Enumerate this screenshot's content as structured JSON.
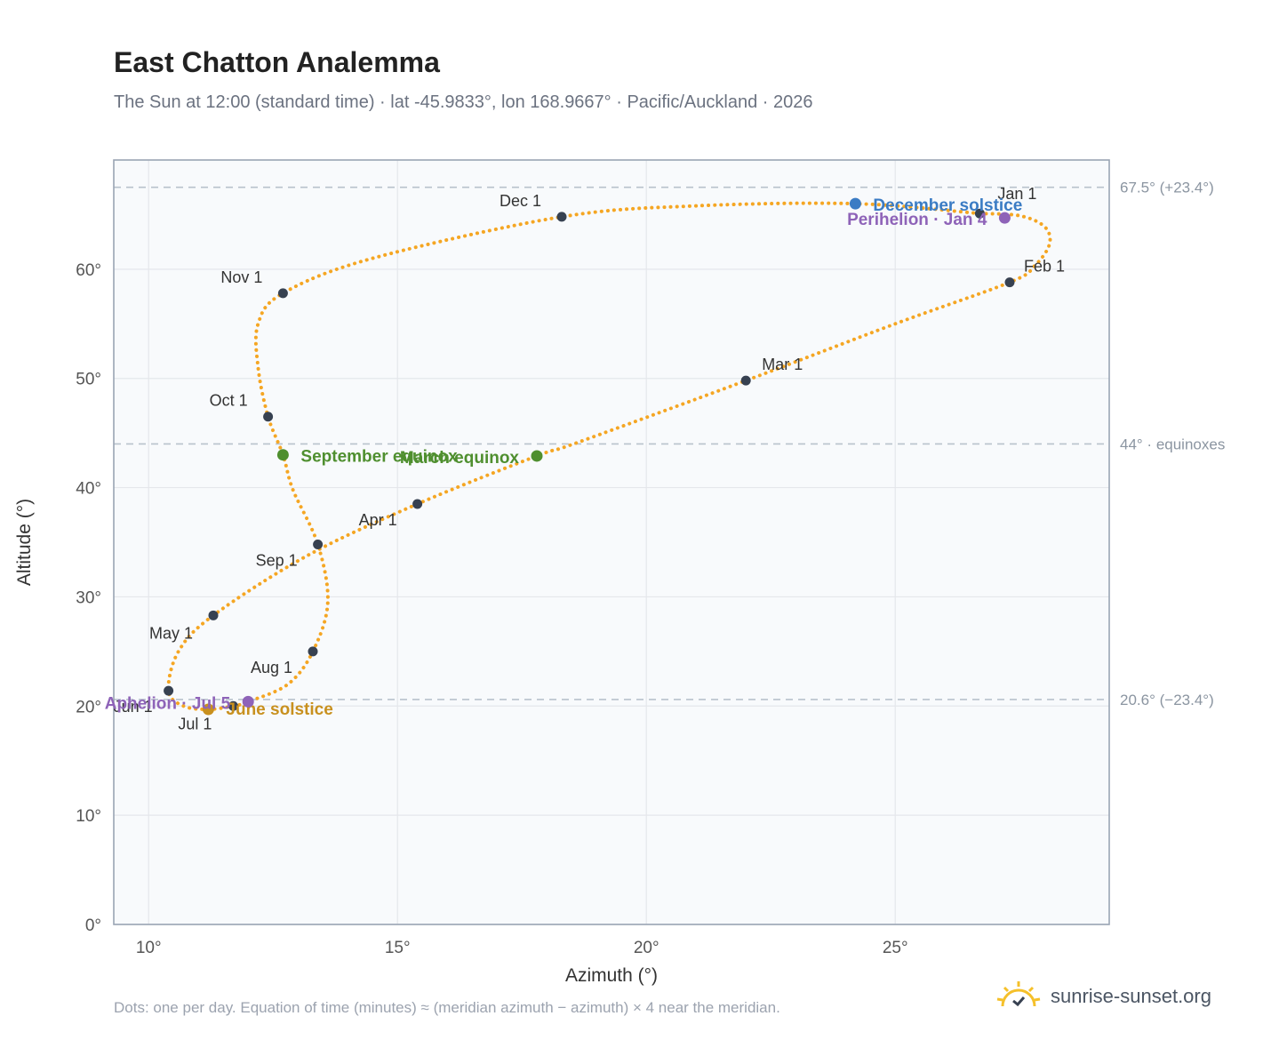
{
  "header": {
    "title": "East Chatton Analemma",
    "subtitle": "The Sun at 12:00 (standard time) · lat -45.9833°, lon 168.9667° · Pacific/Auckland · 2026"
  },
  "footer": {
    "note": "Dots: one per day. Equation of time (minutes) ≈ (meridian azimuth − azimuth) × 4 near the meridian.",
    "brand": "sunrise-sunset.org"
  },
  "colors": {
    "curve": "#f5a623",
    "month_dot": "#374151",
    "solstice_dec": "#3b7cc4",
    "solstice_jun": "#c8901e",
    "equinox": "#4f8f2f",
    "aphelion_perihelion": "#8e63b8",
    "plot_bg": "#f8fafc",
    "grid": "#e5e7eb",
    "reference_line": "#b8c2cc"
  },
  "chart_data": {
    "type": "scatter",
    "title": "East Chatton Analemma",
    "xlabel": "Azimuth (°)",
    "ylabel": "Altitude (°)",
    "xlim": [
      9.3,
      29.3
    ],
    "ylim": [
      0,
      70
    ],
    "xticks": [
      10,
      15,
      20,
      25
    ],
    "xtick_labels": [
      "10°",
      "15°",
      "20°",
      "25°"
    ],
    "yticks": [
      0,
      10,
      20,
      30,
      40,
      50,
      60
    ],
    "ytick_labels": [
      "0°",
      "10°",
      "20°",
      "30°",
      "40°",
      "50°",
      "60°"
    ],
    "grid": true,
    "reference_lines": [
      {
        "y": 67.5,
        "label": "67.5° (+23.4°)"
      },
      {
        "y": 44.0,
        "label": "44° · equinoxes"
      },
      {
        "y": 20.6,
        "label": "20.6° (−23.4°)"
      }
    ],
    "month_points": [
      {
        "label": "Jan 1",
        "az": 26.7,
        "alt": 65.1
      },
      {
        "label": "Feb 1",
        "az": 27.3,
        "alt": 58.8
      },
      {
        "label": "Mar 1",
        "az": 22.0,
        "alt": 49.8
      },
      {
        "label": "Apr 1",
        "az": 15.4,
        "alt": 38.5
      },
      {
        "label": "May 1",
        "az": 11.3,
        "alt": 28.3
      },
      {
        "label": "Jun 1",
        "az": 10.4,
        "alt": 21.4
      },
      {
        "label": "Jul 1",
        "az": 11.7,
        "alt": 20.0
      },
      {
        "label": "Aug 1",
        "az": 13.3,
        "alt": 25.0
      },
      {
        "label": "Sep 1",
        "az": 13.4,
        "alt": 34.8
      },
      {
        "label": "Oct 1",
        "az": 12.4,
        "alt": 46.5
      },
      {
        "label": "Nov 1",
        "az": 12.7,
        "alt": 57.8
      },
      {
        "label": "Dec 1",
        "az": 18.3,
        "alt": 64.8
      }
    ],
    "events": [
      {
        "label": "December solstice",
        "az": 24.2,
        "alt": 66.0,
        "kind": "solstice_dec"
      },
      {
        "label": "Perihelion · Jan 4",
        "az": 27.2,
        "alt": 64.7,
        "kind": "aphelion_perihelion"
      },
      {
        "label": "March equinox",
        "az": 17.8,
        "alt": 42.9,
        "kind": "equinox"
      },
      {
        "label": "September equinox",
        "az": 12.7,
        "alt": 43.0,
        "kind": "equinox"
      },
      {
        "label": "June solstice",
        "az": 11.2,
        "alt": 19.7,
        "kind": "solstice_jun"
      },
      {
        "label": "Aphelion · Jul 5",
        "az": 12.0,
        "alt": 20.4,
        "kind": "aphelion_perihelion"
      }
    ],
    "analemma_path": [
      {
        "az": 26.7,
        "alt": 65.1
      },
      {
        "az": 27.5,
        "alt": 64.9
      },
      {
        "az": 28.0,
        "alt": 63.9
      },
      {
        "az": 28.1,
        "alt": 62.3
      },
      {
        "az": 27.8,
        "alt": 60.3
      },
      {
        "az": 27.3,
        "alt": 58.8
      },
      {
        "az": 25.0,
        "alt": 55.0
      },
      {
        "az": 22.0,
        "alt": 49.8
      },
      {
        "az": 18.6,
        "alt": 44.1
      },
      {
        "az": 17.8,
        "alt": 42.9
      },
      {
        "az": 15.4,
        "alt": 38.5
      },
      {
        "az": 13.2,
        "alt": 33.8
      },
      {
        "az": 11.3,
        "alt": 28.3
      },
      {
        "az": 10.6,
        "alt": 25.0
      },
      {
        "az": 10.4,
        "alt": 21.4
      },
      {
        "az": 10.7,
        "alt": 20.0
      },
      {
        "az": 11.2,
        "alt": 19.7
      },
      {
        "az": 11.7,
        "alt": 20.0
      },
      {
        "az": 12.0,
        "alt": 20.4
      },
      {
        "az": 12.8,
        "alt": 22.0
      },
      {
        "az": 13.3,
        "alt": 25.0
      },
      {
        "az": 13.6,
        "alt": 29.5
      },
      {
        "az": 13.4,
        "alt": 34.8
      },
      {
        "az": 12.9,
        "alt": 39.8
      },
      {
        "az": 12.7,
        "alt": 43.0
      },
      {
        "az": 12.4,
        "alt": 46.5
      },
      {
        "az": 12.2,
        "alt": 51.0
      },
      {
        "az": 12.2,
        "alt": 55.0
      },
      {
        "az": 12.7,
        "alt": 57.8
      },
      {
        "az": 14.5,
        "alt": 61.0
      },
      {
        "az": 18.3,
        "alt": 64.8
      },
      {
        "az": 21.0,
        "alt": 65.8
      },
      {
        "az": 24.2,
        "alt": 66.0
      },
      {
        "az": 26.7,
        "alt": 65.1
      }
    ]
  }
}
